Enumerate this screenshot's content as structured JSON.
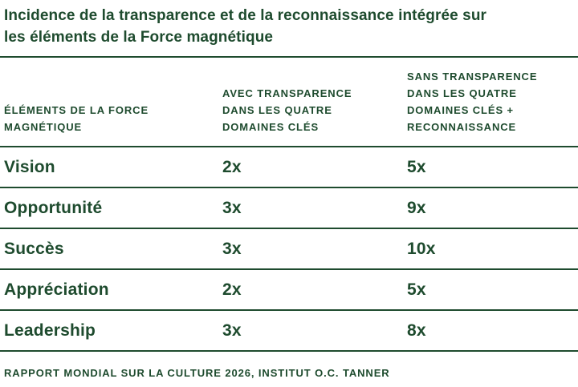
{
  "title": "Incidence de la transparence et de la reconnaissance intégrée sur\nles éléments de la Force magnétique",
  "colors": {
    "text": "#1E4B2E",
    "rule": "#1E4B2E",
    "background": "#FFFFFF"
  },
  "table": {
    "col_headers": {
      "elements": "ÉLÉMENTS DE LA FORCE\nMAGNÉTIQUE",
      "with_transparency": "AVEC TRANSPARENCE\nDANS LES QUATRE\nDOMAINES CLÉS",
      "without_transparency": "SANS TRANSPARENCE\nDANS LES QUATRE\nDOMAINES CLÉS +\nRECONNAISSANCE"
    },
    "rows": [
      {
        "label": "Vision",
        "with": "2x",
        "without": "5x"
      },
      {
        "label": "Opportunité",
        "with": "3x",
        "without": "9x"
      },
      {
        "label": "Succès",
        "with": "3x",
        "without": "10x"
      },
      {
        "label": "Appréciation",
        "with": "2x",
        "without": "5x"
      },
      {
        "label": "Leadership",
        "with": "3x",
        "without": "8x"
      }
    ]
  },
  "footer": "RAPPORT MONDIAL SUR LA CULTURE 2026, INSTITUT O.C. TANNER",
  "chart_data": {
    "type": "table",
    "title": "Incidence de la transparence et de la reconnaissance intégrée sur les éléments de la Force magnétique",
    "columns": [
      "ÉLÉMENTS DE LA FORCE MAGNÉTIQUE",
      "AVEC TRANSPARENCE DANS LES QUATRE DOMAINES CLÉS",
      "SANS TRANSPARENCE DANS LES QUATRE DOMAINES CLÉS + RECONNAISSANCE"
    ],
    "rows": [
      [
        "Vision",
        "2x",
        "5x"
      ],
      [
        "Opportunité",
        "3x",
        "9x"
      ],
      [
        "Succès",
        "3x",
        "10x"
      ],
      [
        "Appréciation",
        "2x",
        "5x"
      ],
      [
        "Leadership",
        "3x",
        "8x"
      ]
    ],
    "source": "RAPPORT MONDIAL SUR LA CULTURE 2026, INSTITUT O.C. TANNER"
  }
}
